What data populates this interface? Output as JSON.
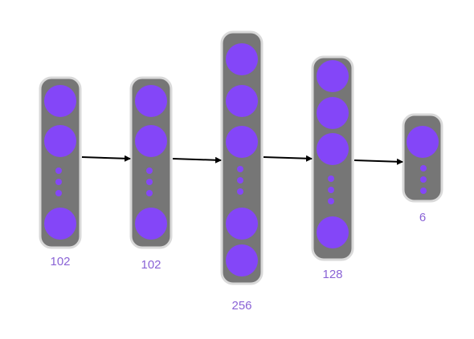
{
  "diagram": {
    "type": "neural-network",
    "colors": {
      "layer_fill": "#767676",
      "layer_border": "#d9d9d9",
      "neuron": "#8446f8",
      "label": "#8a63d6",
      "arrow": "#000000"
    },
    "layers": [
      {
        "label": "102",
        "neurons_top": 2,
        "neurons_bottom": 1
      },
      {
        "label": "102",
        "neurons_top": 2,
        "neurons_bottom": 1
      },
      {
        "label": "256",
        "neurons_top": 3,
        "neurons_bottom": 2
      },
      {
        "label": "128",
        "neurons_top": 3,
        "neurons_bottom": 1
      },
      {
        "label": "6",
        "neurons_top": 1,
        "neurons_bottom": 0
      }
    ],
    "arrows": [
      {
        "from": 0,
        "to": 1
      },
      {
        "from": 1,
        "to": 2
      },
      {
        "from": 2,
        "to": 3
      },
      {
        "from": 3,
        "to": 4
      }
    ]
  }
}
